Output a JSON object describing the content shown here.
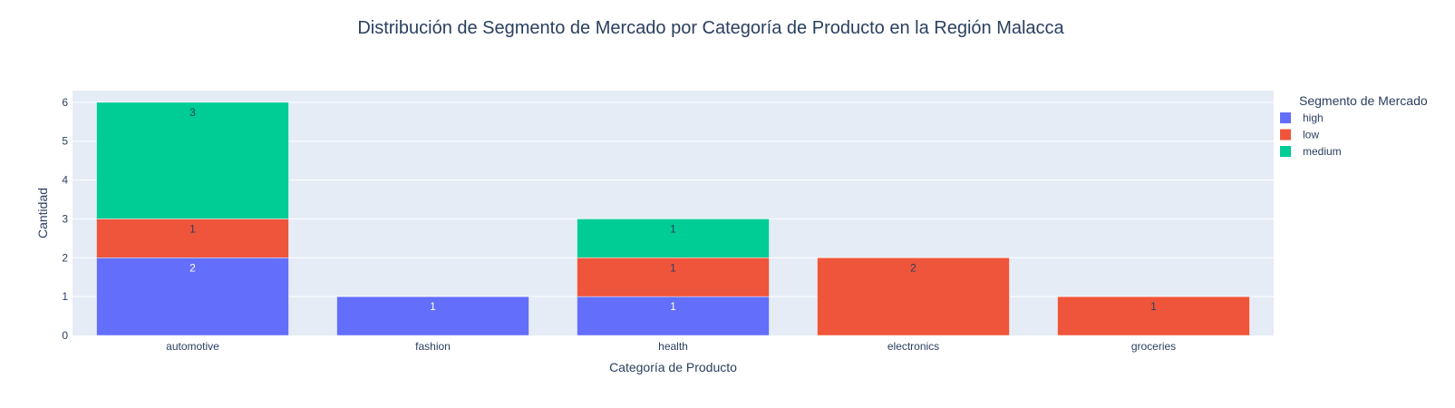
{
  "chart_data": {
    "type": "bar",
    "barmode": "stack",
    "title": "Distribución de Segmento de Mercado por Categoría de Producto en la Región Malacca",
    "xlabel": "Categoría de Producto",
    "ylabel": "Cantidad",
    "categories": [
      "automotive",
      "fashion",
      "health",
      "electronics",
      "groceries"
    ],
    "ylim": [
      0,
      6.3
    ],
    "yticks": [
      0,
      1,
      2,
      3,
      4,
      5,
      6
    ],
    "grid": true,
    "legend": {
      "title": "Segmento de Mercado",
      "position": "top-right"
    },
    "series": [
      {
        "name": "high",
        "color": "#636efa",
        "label_color": "#ffffff",
        "values": [
          2,
          1,
          1,
          null,
          null
        ]
      },
      {
        "name": "low",
        "color": "#ef553b",
        "label_color": "#2a3f5f",
        "values": [
          1,
          null,
          1,
          2,
          1
        ]
      },
      {
        "name": "medium",
        "color": "#00cc96",
        "label_color": "#2a3f5f",
        "values": [
          3,
          null,
          1,
          null,
          null
        ]
      }
    ]
  }
}
